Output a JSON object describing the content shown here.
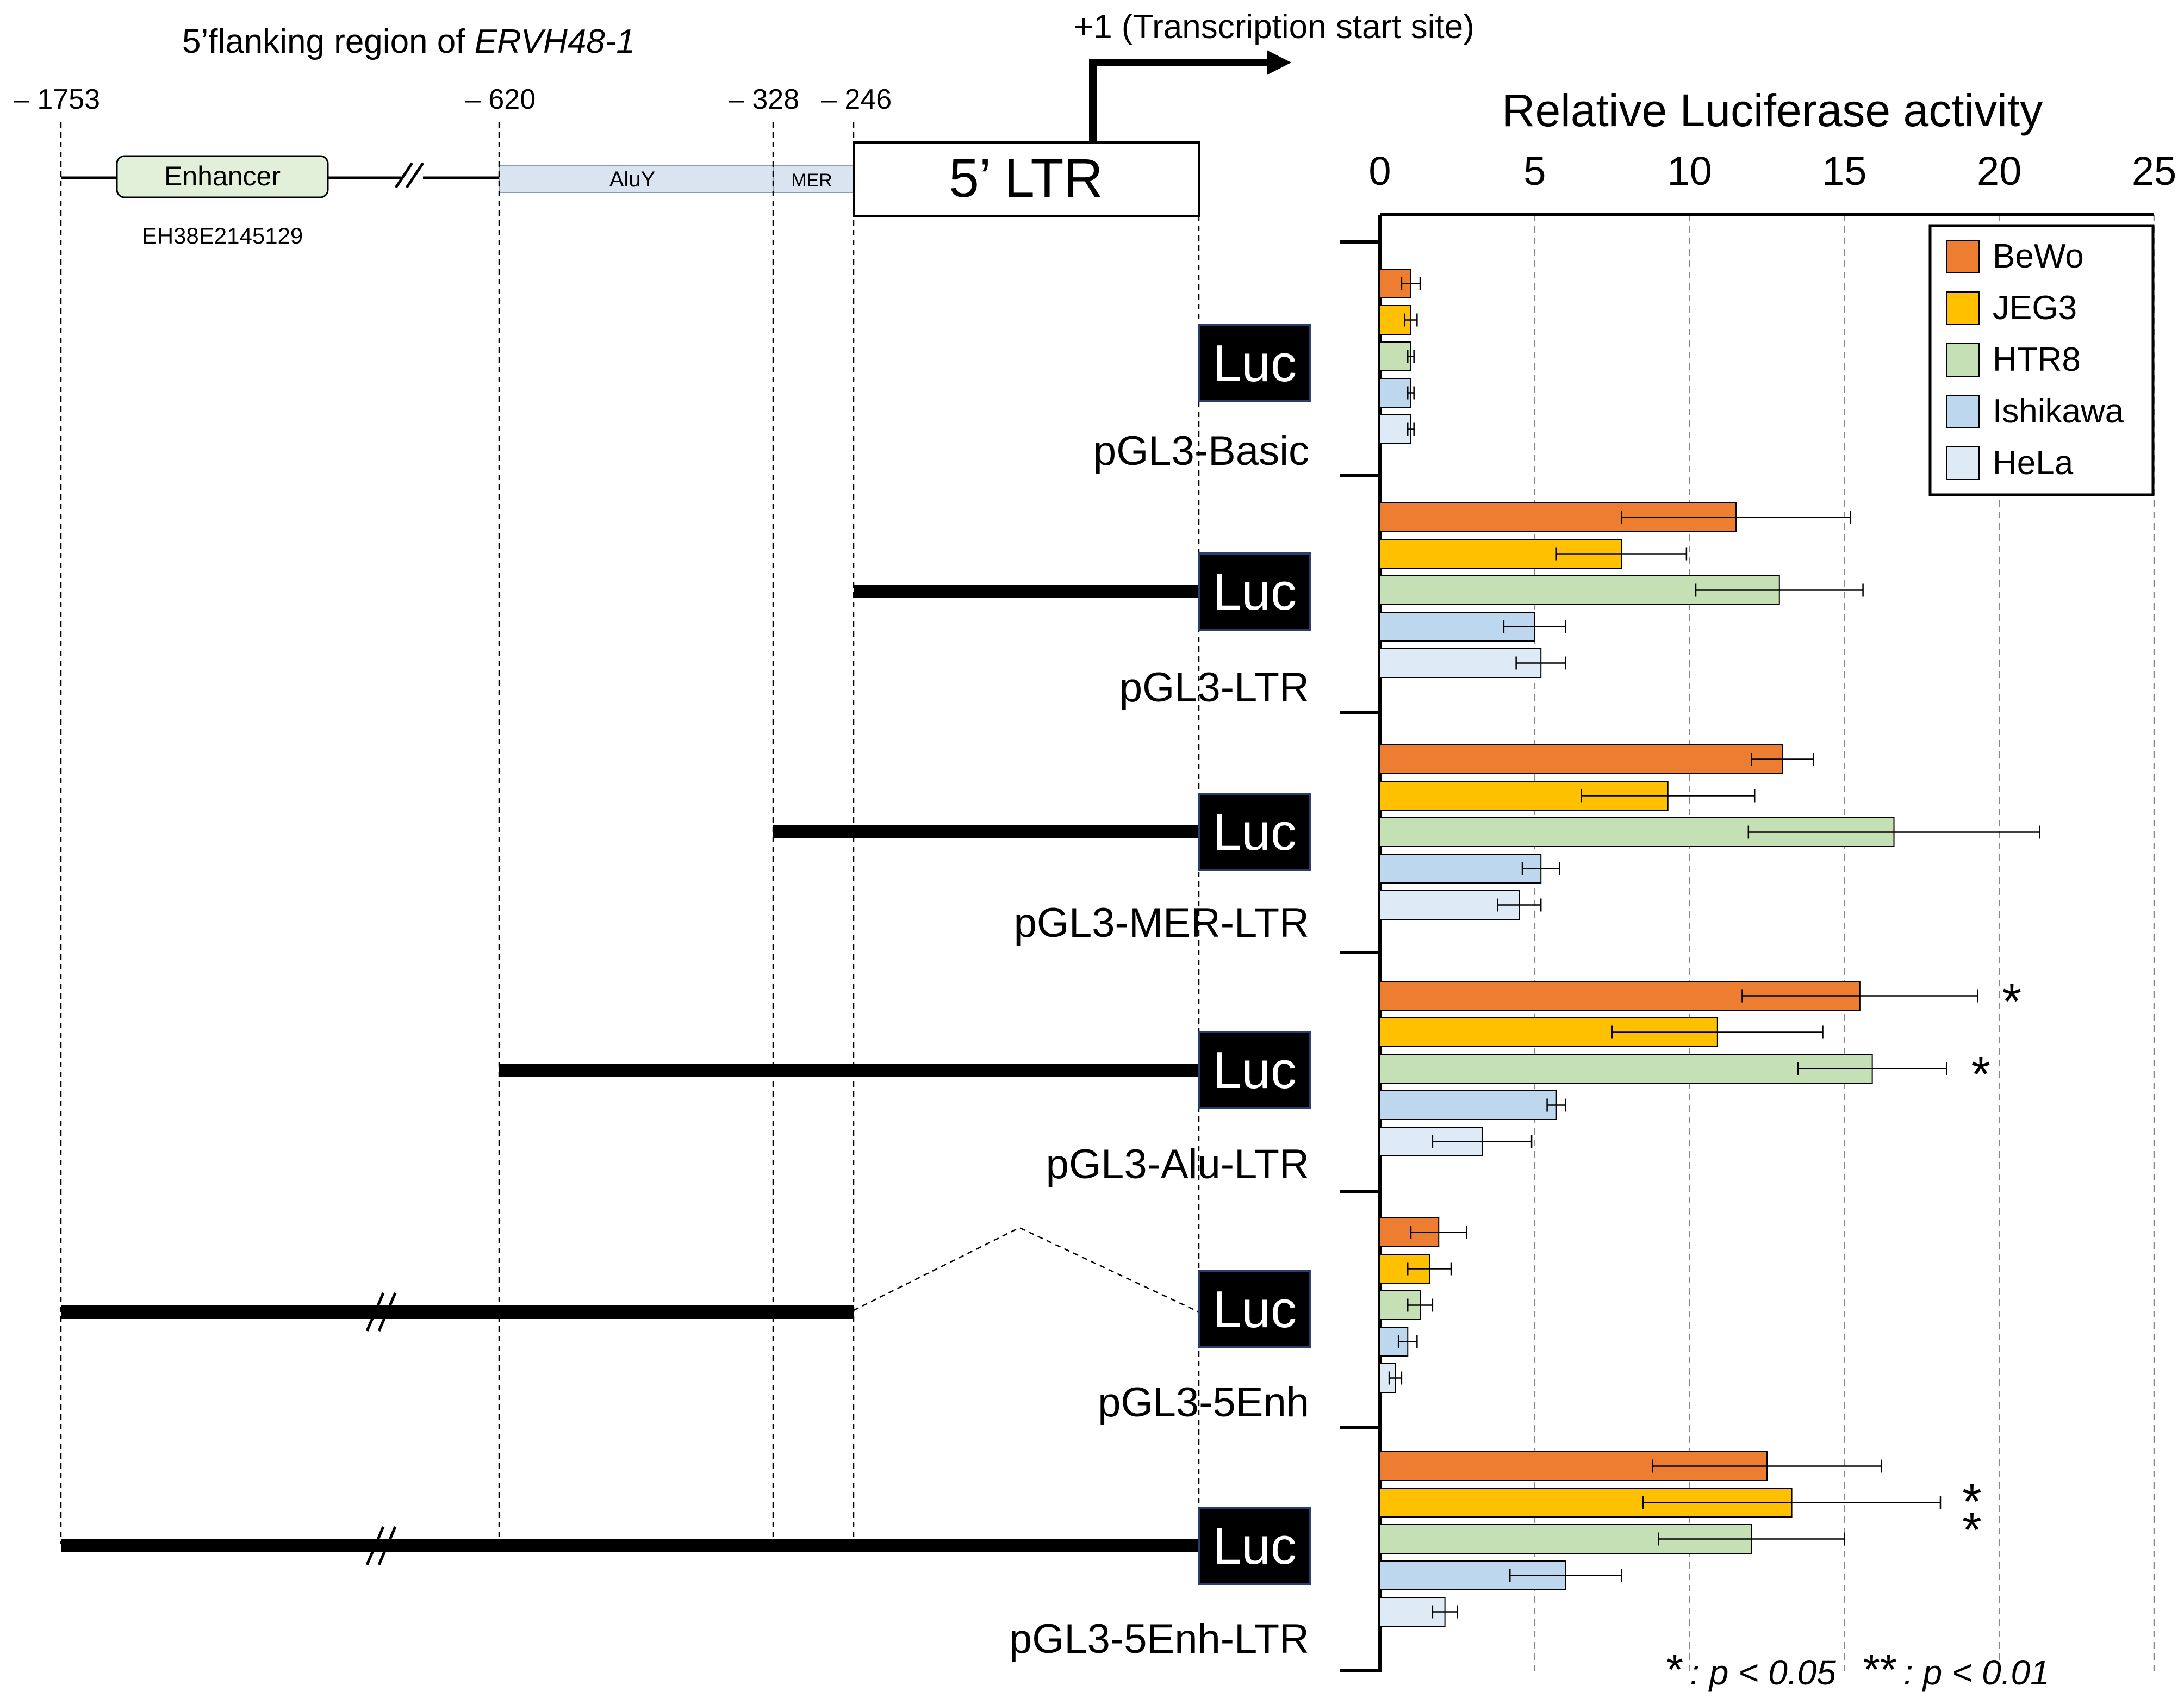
{
  "map": {
    "region_title_prefix": "5’flanking region of ",
    "region_title_gene": "ERVH48-1",
    "tss_label": "+1 (Transcription start site)",
    "positions": [
      "– 1753",
      "– 620",
      "– 328",
      "– 246"
    ],
    "enhancer_label": "Enhancer",
    "enhancer_id": "EH38E2145129",
    "alu_label": "AluY",
    "mer_label": "MER",
    "ltr_label": "5’ LTR",
    "luc_label": "Luc"
  },
  "constructs": [
    "pGL3-Basic",
    "pGL3-LTR",
    "pGL3-MER-LTR",
    "pGL3-Alu-LTR",
    "pGL3-5Enh",
    "pGL3-5Enh-LTR"
  ],
  "footnote": {
    "star1": "*",
    "text1": ": p < 0.05",
    "star2": "**",
    "text2": ": p < 0.01"
  },
  "chart_data": {
    "type": "bar",
    "orientation": "horizontal",
    "title": "Relative Luciferase activity",
    "xlim": [
      0,
      25
    ],
    "xticks": [
      "0",
      "5",
      "10",
      "15",
      "20",
      "25"
    ],
    "grid": true,
    "legend_position": "top-right",
    "categories": [
      "pGL3-Basic",
      "pGL3-LTR",
      "pGL3-MER-LTR",
      "pGL3-Alu-LTR",
      "pGL3-5Enh",
      "pGL3-5Enh-LTR"
    ],
    "series": [
      {
        "name": "BeWo",
        "color": "#ED7D31",
        "values": [
          1.0,
          11.5,
          13.0,
          15.5,
          1.9,
          12.5
        ],
        "errors": [
          0.3,
          3.7,
          1.0,
          3.8,
          0.9,
          3.7
        ]
      },
      {
        "name": "JEG3",
        "color": "#FFC000",
        "values": [
          1.0,
          7.8,
          9.3,
          10.9,
          1.6,
          13.3
        ],
        "errors": [
          0.2,
          2.1,
          2.8,
          3.4,
          0.7,
          4.8
        ]
      },
      {
        "name": "HTR8",
        "color": "#C5E0B4",
        "values": [
          1.0,
          12.9,
          16.6,
          15.9,
          1.3,
          12.0
        ],
        "errors": [
          0.1,
          2.7,
          4.7,
          2.4,
          0.4,
          3.0
        ]
      },
      {
        "name": "Ishikawa",
        "color": "#BDD7EE",
        "values": [
          1.0,
          5.0,
          5.2,
          5.7,
          0.9,
          6.0
        ],
        "errors": [
          0.1,
          1.0,
          0.6,
          0.3,
          0.3,
          1.8
        ]
      },
      {
        "name": "HeLa",
        "color": "#DEEBF7",
        "values": [
          1.0,
          5.2,
          4.5,
          3.3,
          0.5,
          2.1
        ],
        "errors": [
          0.1,
          0.8,
          0.7,
          1.6,
          0.2,
          0.4
        ]
      }
    ],
    "significance": [
      {
        "category": "pGL3-Alu-LTR",
        "series": "BeWo",
        "mark": "*"
      },
      {
        "category": "pGL3-Alu-LTR",
        "series": "HTR8",
        "mark": "*"
      },
      {
        "category": "pGL3-5Enh-LTR",
        "series": "JEG3",
        "mark": "**"
      }
    ]
  }
}
